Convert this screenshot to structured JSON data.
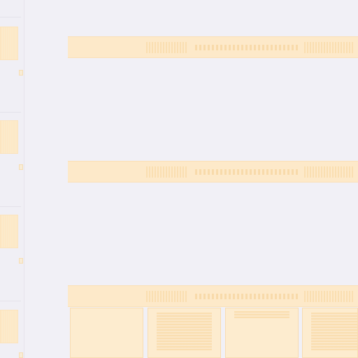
{
  "window": {
    "title": ""
  },
  "rail": {
    "thumbnails": [
      {
        "label": ""
      },
      {
        "label": ""
      },
      {
        "label": ""
      },
      {
        "label": ""
      }
    ]
  },
  "canvas": {
    "sections": [
      {
        "label": ""
      },
      {
        "label": ""
      },
      {
        "label": ""
      }
    ],
    "grid_cells": [
      {
        "label": ""
      },
      {
        "label": ""
      },
      {
        "label": ""
      },
      {
        "label": ""
      }
    ]
  },
  "colors": {
    "background": "#f1f0f6",
    "accent": "#fde9c9"
  }
}
